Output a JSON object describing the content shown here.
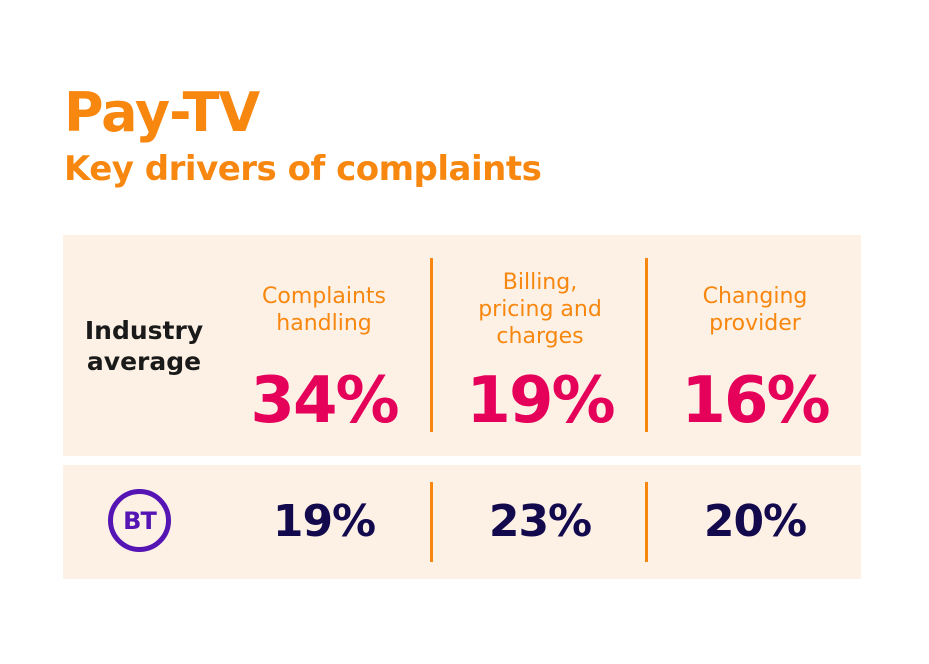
{
  "header": {
    "title": "Pay-TV",
    "subtitle": "Key drivers of complaints"
  },
  "colors": {
    "orange": "#f7870f",
    "magenta": "#e5005a",
    "navy": "#120a4d",
    "panel": "#fdf1e5",
    "bt_purple": "#5514b4"
  },
  "chart_data": {
    "type": "table",
    "title": "Pay-TV",
    "subtitle": "Key drivers of complaints",
    "columns": [
      {
        "label_lines": [
          "Complaints",
          "handling"
        ]
      },
      {
        "label_lines": [
          "Billing,",
          "pricing and",
          "charges"
        ]
      },
      {
        "label_lines": [
          "Changing",
          "provider"
        ]
      }
    ],
    "rows": [
      {
        "label_lines": [
          "Industry",
          "average"
        ],
        "values": [
          "34%",
          "19%",
          "16%"
        ]
      },
      {
        "label": "BT",
        "logo": "bt-logo",
        "values": [
          "19%",
          "23%",
          "20%"
        ]
      }
    ]
  }
}
